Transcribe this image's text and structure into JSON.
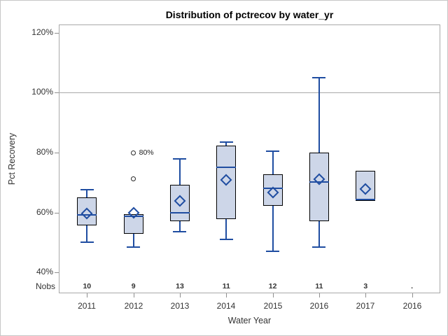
{
  "chart_data": {
    "type": "box",
    "title": "Distribution of pctrecov by water_yr",
    "xlabel": "Water Year",
    "ylabel": "Pct Recovery",
    "nobs_label": "Nobs",
    "y_ticks": [
      40,
      60,
      80,
      100,
      120
    ],
    "y_tick_suffix": "%",
    "ylim": [
      33,
      123
    ],
    "reference_line": 100,
    "grid": "off",
    "categories": [
      "2011",
      "2012",
      "2013",
      "2014",
      "2015",
      "2016",
      "2017",
      "2016"
    ],
    "nobs": [
      "10",
      "9",
      "13",
      "11",
      "12",
      "11",
      "3",
      "."
    ],
    "boxes": [
      {
        "category": "2011",
        "n": 10,
        "whisker_low": 50,
        "q1": 55.8,
        "median": 59.3,
        "mean": 59.8,
        "q3": 65,
        "whisker_high": 67.6,
        "outliers": []
      },
      {
        "category": "2012",
        "n": 9,
        "whisker_low": 48.5,
        "q1": 53,
        "median": 58.8,
        "mean": 60,
        "q3": 59.5,
        "whisker_high": 59.5,
        "outliers": [
          {
            "value": 71.3,
            "label": ""
          },
          {
            "value": 80,
            "label": "80%"
          }
        ]
      },
      {
        "category": "2013",
        "n": 13,
        "whisker_low": 53.5,
        "q1": 57,
        "median": 60,
        "mean": 63.9,
        "q3": 69.3,
        "whisker_high": 78,
        "outliers": []
      },
      {
        "category": "2014",
        "n": 11,
        "whisker_low": 51,
        "q1": 57.7,
        "median": 75.2,
        "mean": 70.9,
        "q3": 82.3,
        "whisker_high": 83.4,
        "outliers": []
      },
      {
        "category": "2015",
        "n": 12,
        "whisker_low": 47,
        "q1": 62.2,
        "median": 68,
        "mean": 66.8,
        "q3": 72.7,
        "whisker_high": 80.5,
        "outliers": []
      },
      {
        "category": "2016",
        "n": 11,
        "whisker_low": 48.5,
        "q1": 57.1,
        "median": 70.2,
        "mean": 71.1,
        "q3": 79.9,
        "whisker_high": 105,
        "outliers": []
      },
      {
        "category": "2017",
        "n": 3,
        "whisker_low": 63.9,
        "q1": 63.9,
        "median": 64.3,
        "mean": 67.8,
        "q3": 74,
        "whisker_high": 74,
        "outliers": []
      },
      {
        "category": "2016",
        "n": null,
        "empty": true,
        "outliers": []
      }
    ],
    "colors": {
      "box_fill": "#cdd6e8",
      "box_border": "#000000",
      "line_blue": "#1f4da1",
      "frame_grey": "#a9a9a9",
      "outlier": "#2b2b2b",
      "text": "#333333",
      "title_text": "#000000"
    }
  }
}
